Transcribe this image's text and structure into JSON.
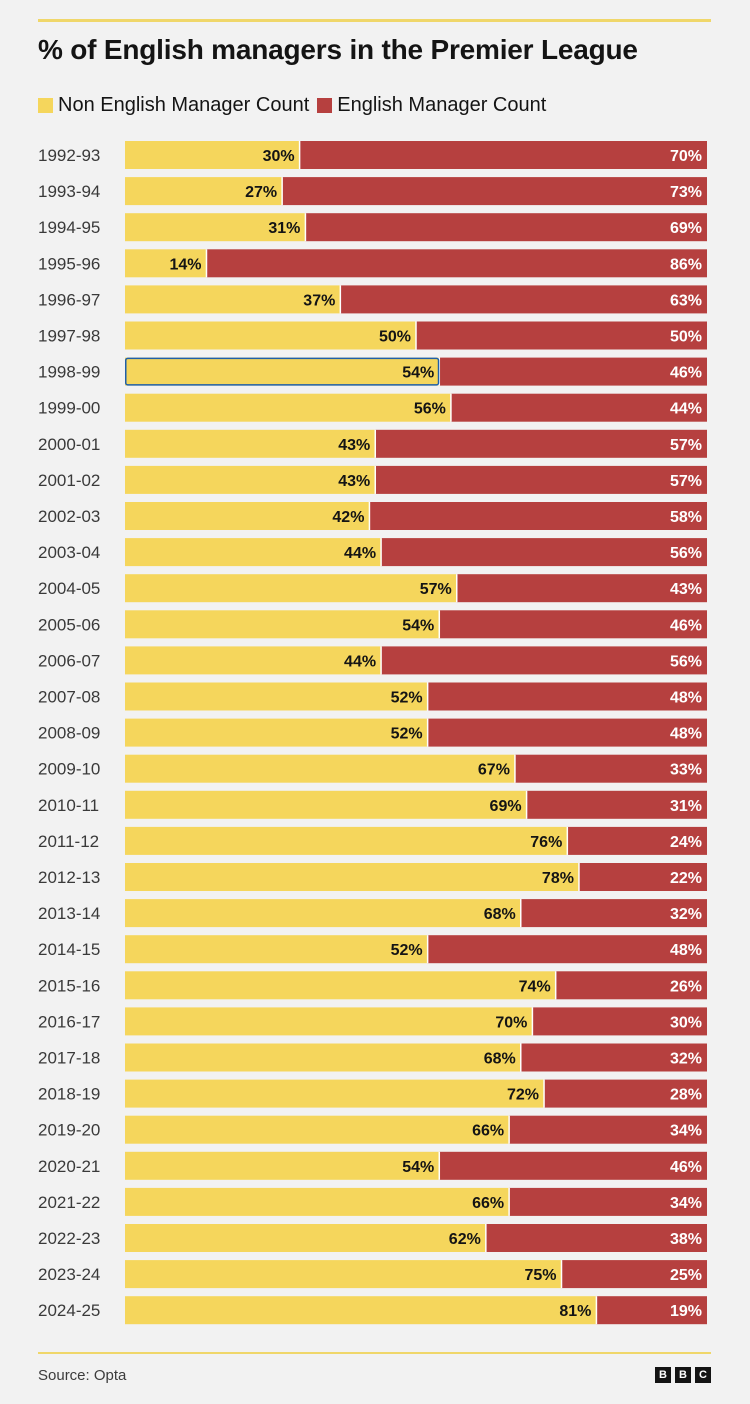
{
  "chart_data": {
    "type": "bar",
    "stacked": true,
    "orientation": "horizontal",
    "title": "% of English managers in the Premier League",
    "categories": [
      "1992-93",
      "1993-94",
      "1994-95",
      "1995-96",
      "1996-97",
      "1997-98",
      "1998-99",
      "1999-00",
      "2000-01",
      "2001-02",
      "2002-03",
      "2003-04",
      "2004-05",
      "2005-06",
      "2006-07",
      "2007-08",
      "2008-09",
      "2009-10",
      "2010-11",
      "2011-12",
      "2012-13",
      "2013-14",
      "2014-15",
      "2015-16",
      "2016-17",
      "2017-18",
      "2018-19",
      "2019-20",
      "2020-21",
      "2021-22",
      "2022-23",
      "2023-24",
      "2024-25"
    ],
    "series": [
      {
        "name": "Non English Manager Count",
        "color": "#f5d65c",
        "values": [
          30,
          27,
          31,
          14,
          37,
          50,
          54,
          56,
          43,
          43,
          42,
          44,
          57,
          54,
          44,
          52,
          52,
          67,
          69,
          76,
          78,
          68,
          52,
          74,
          70,
          68,
          72,
          66,
          54,
          66,
          62,
          75,
          81
        ]
      },
      {
        "name": "English Manager Count",
        "color": "#b6403f",
        "values": [
          70,
          73,
          69,
          86,
          63,
          50,
          46,
          44,
          57,
          57,
          58,
          56,
          43,
          46,
          56,
          48,
          48,
          33,
          31,
          24,
          22,
          32,
          48,
          26,
          30,
          32,
          28,
          34,
          46,
          34,
          38,
          25,
          19
        ]
      }
    ],
    "value_suffix": "%",
    "xlim": [
      0,
      100
    ],
    "highlighted_category": "1998-99",
    "highlight_color": "#1f5fa8",
    "legend_position": "top-left",
    "source": "Source: Opta",
    "logo": "BBC"
  }
}
